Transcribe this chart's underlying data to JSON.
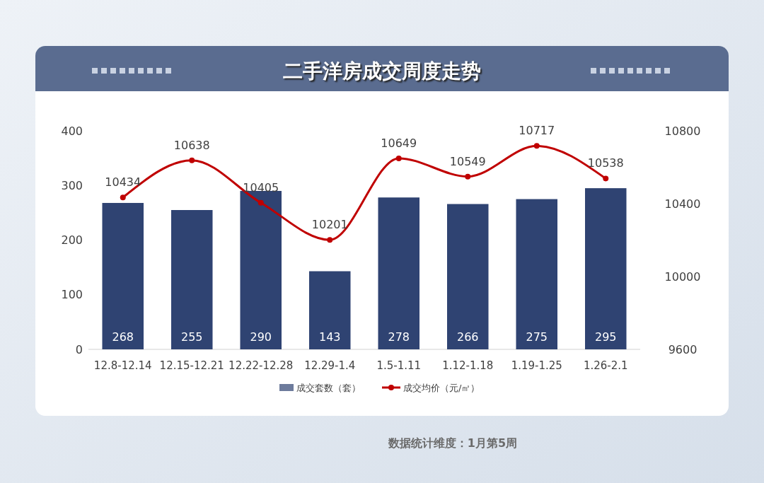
{
  "chart_data": {
    "type": "bar",
    "title": "二手洋房成交周度走势",
    "categories": [
      "12.8-12.14",
      "12.15-12.21",
      "12.22-12.28",
      "12.29-1.4",
      "1.5-1.11",
      "1.12-1.18",
      "1.19-1.25",
      "1.26-2.1"
    ],
    "series": [
      {
        "name": "成交套数（套）",
        "color": "#2f4372",
        "values": [
          268,
          255,
          290,
          143,
          278,
          266,
          275,
          295
        ]
      },
      {
        "name": "成交均价（元/㎡）",
        "type": "line",
        "axis": "y2",
        "color": "#c00000",
        "values": [
          10434,
          10638,
          10405,
          10201,
          10649,
          10549,
          10717,
          10538
        ]
      }
    ],
    "ylim": [
      0,
      400
    ],
    "yticks": [
      0,
      100,
      200,
      300,
      400
    ],
    "y2lim": [
      9600,
      10800
    ],
    "y2ticks": [
      9600,
      10000,
      10400,
      10800
    ],
    "grid": false,
    "legend": "bottom",
    "data_labels": true,
    "marker": "circle",
    "annotations": [
      "数据统计维度：1月第5周"
    ]
  }
}
